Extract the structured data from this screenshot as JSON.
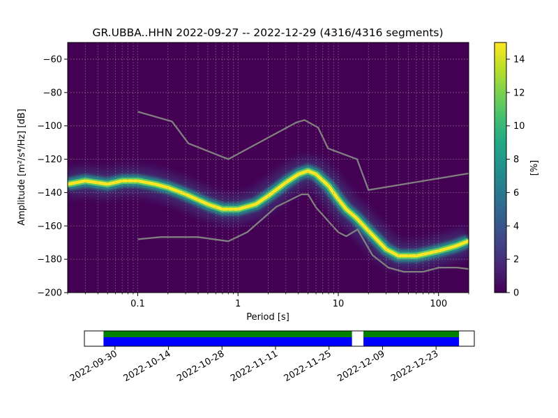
{
  "chart_data": [
    {
      "type": "heatmap",
      "title": "GR.UBBA..HHN   2022-09-27 -- 2022-12-29  (4316/4316 segments)",
      "xlabel": "Period [s]",
      "ylabel": "Amplitude [m²/s⁴/Hz] [dB]",
      "xscale": "log",
      "xlim": [
        0.02,
        200
      ],
      "ylim": [
        -200,
        -50
      ],
      "xticks": [
        0.1,
        1,
        10,
        100
      ],
      "xtick_labels": [
        "0.1",
        "1",
        "10",
        "100"
      ],
      "yticks": [
        -60,
        -80,
        -100,
        -120,
        -140,
        -160,
        -180,
        -200
      ],
      "ytick_labels": [
        "−60",
        "−80",
        "−100",
        "−120",
        "−140",
        "−160",
        "−180",
        "−200"
      ],
      "grid": true,
      "colormap": "viridis",
      "colorbar": {
        "label": "[%]",
        "range": [
          0,
          15
        ],
        "ticks": [
          0,
          2,
          4,
          6,
          8,
          10,
          12,
          14
        ],
        "tick_labels": [
          "0",
          "2",
          "4",
          "6",
          "8",
          "10",
          "12",
          "14"
        ]
      },
      "mode_curve": {
        "period": [
          0.02,
          0.03,
          0.05,
          0.07,
          0.1,
          0.15,
          0.2,
          0.3,
          0.5,
          0.7,
          1,
          1.5,
          2,
          3,
          4,
          5,
          6,
          8,
          10,
          12,
          15,
          20,
          30,
          40,
          60,
          100,
          150,
          200
        ],
        "db": [
          -135,
          -133,
          -135,
          -133,
          -133,
          -135,
          -137,
          -141,
          -147,
          -150,
          -150,
          -147,
          -142,
          -134,
          -129,
          -127,
          -129,
          -136,
          -144,
          -150,
          -155,
          -163,
          -174,
          -178,
          -178,
          -175,
          -172,
          -169
        ]
      },
      "noise_model_upper": {
        "period": [
          0.1,
          0.22,
          0.32,
          0.8,
          3.8,
          4.6,
          6.3,
          7.9,
          15.4,
          20,
          354.8
        ],
        "db": [
          -91.5,
          -97.4,
          -110.5,
          -120,
          -98,
          -96.5,
          -101,
          -113.5,
          -120,
          -138.5,
          -126
        ]
      },
      "noise_model_lower": {
        "period": [
          0.1,
          0.17,
          0.4,
          0.8,
          1.24,
          2.4,
          4.3,
          5,
          6,
          10,
          12,
          15.6,
          21.9,
          31.6,
          45,
          70,
          101,
          154,
          328
        ],
        "db": [
          -168,
          -166.7,
          -166.7,
          -169.2,
          -163.7,
          -148.6,
          -141.1,
          -141.1,
          -149,
          -163.8,
          -166.2,
          -162.1,
          -177.5,
          -185,
          -187.5,
          -187.5,
          -185,
          -185,
          -187.5
        ]
      }
    },
    {
      "type": "timeline",
      "date_ticks": [
        "2022-09-30",
        "2022-10-14",
        "2022-10-28",
        "2022-11-11",
        "2022-11-25",
        "2022-12-09",
        "2022-12-23"
      ],
      "coverage_segments": [
        {
          "start": "2022-09-27",
          "end": "2022-12-01"
        },
        {
          "start": "2022-12-04",
          "end": "2022-12-29"
        }
      ],
      "range": [
        "2022-09-22",
        "2023-01-02"
      ],
      "colors": {
        "data": "#0000ff",
        "processed": "#008000"
      }
    }
  ]
}
